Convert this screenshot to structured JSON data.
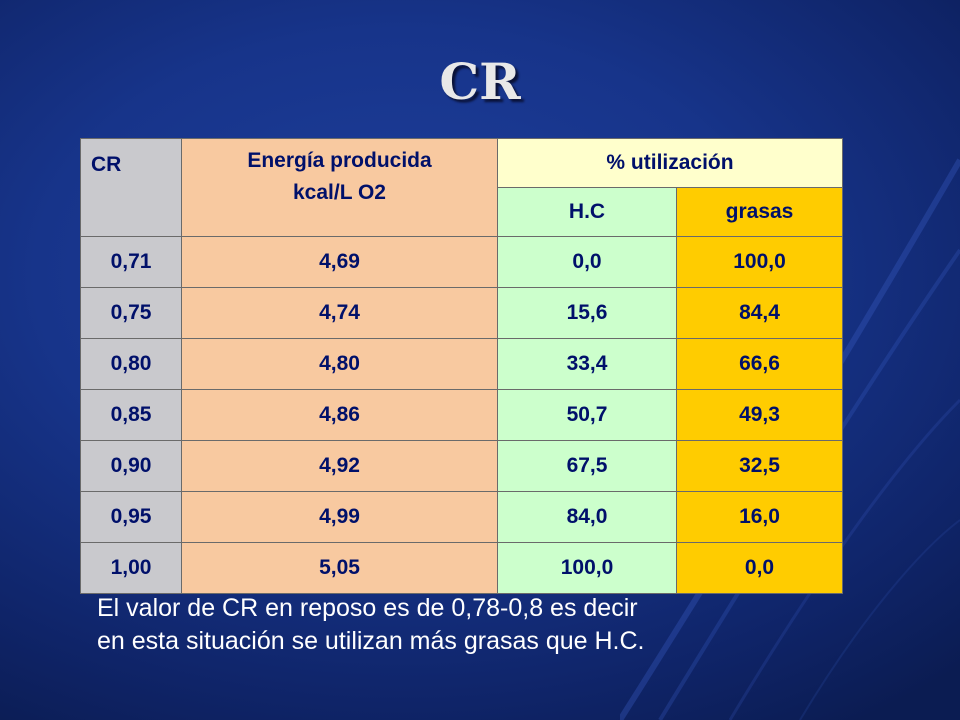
{
  "slide": {
    "title": "CR",
    "note_lines": [
      "El valor de CR en reposo es de 0,78-0,8 es decir",
      "en esta situación se utilizan más grasas que H.C."
    ]
  },
  "table": {
    "headers": {
      "cr": "CR",
      "energy_line1": "Energía producida",
      "energy_line2": "kcal/L O2",
      "pct": "% utilización",
      "hc": "H.C",
      "fat": "grasas"
    },
    "rows": [
      [
        "0,71",
        "4,69",
        "0,0",
        "100,0"
      ],
      [
        "0,75",
        "4,74",
        "15,6",
        "84,4"
      ],
      [
        "0,80",
        "4,80",
        "33,4",
        "66,6"
      ],
      [
        "0,85",
        "4,86",
        "50,7",
        "49,3"
      ],
      [
        "0,90",
        "4,92",
        "67,5",
        "32,5"
      ],
      [
        "0,95",
        "4,99",
        "84,0",
        "16,0"
      ],
      [
        "1,00",
        "5,05",
        "100,0",
        "0,0"
      ]
    ]
  },
  "colors": {
    "background": "#17348a",
    "cr_column": "#c9c9cd",
    "energy_column": "#f8c9a0",
    "pct_header": "#ffffcc",
    "hc_column": "#ccffcc",
    "fat_column": "#ffcc00",
    "table_text": "#00106a"
  }
}
